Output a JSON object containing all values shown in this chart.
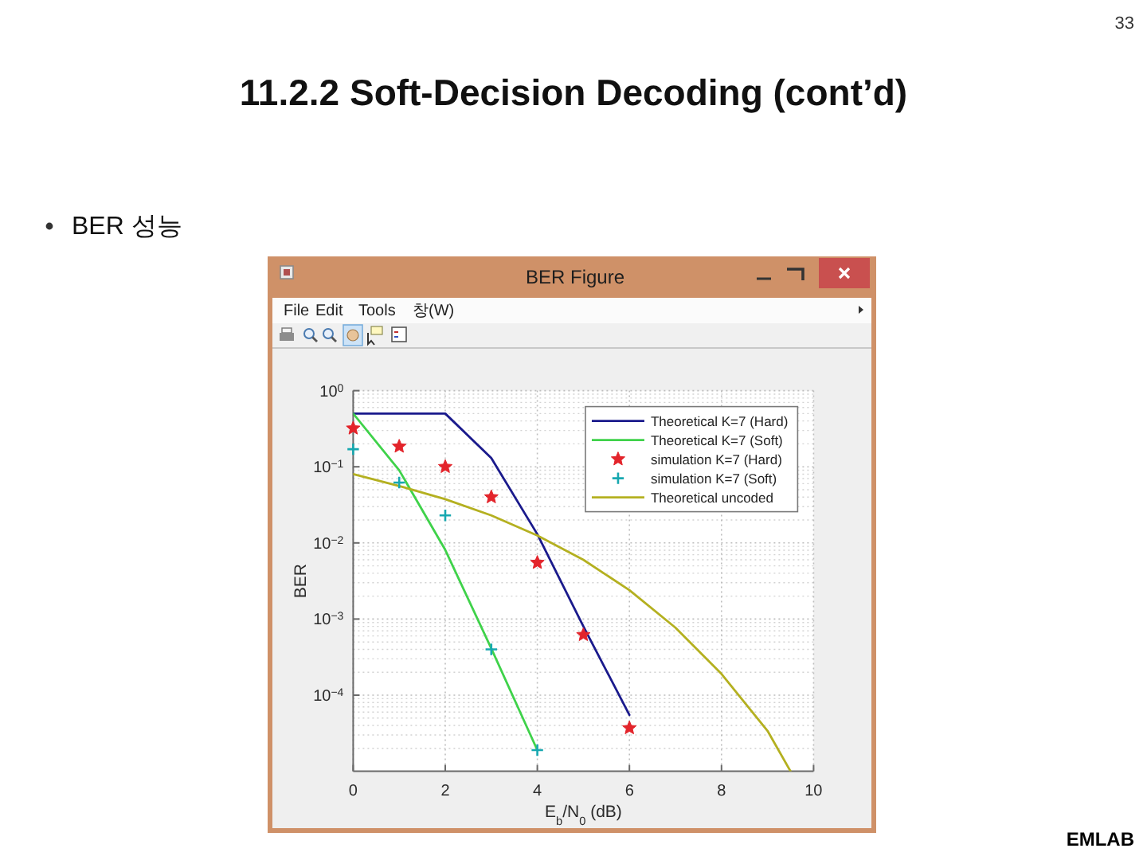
{
  "chart_data": {
    "type": "line",
    "title": "11.2.2 Soft-Decision Decoding (cont’d)",
    "subtitle": "BER 성능",
    "xlabel": "E$_{b}$/N$_{0}$ (dB)",
    "ylabel": "BER",
    "xlim": [
      0,
      10
    ],
    "xticks": [
      0,
      2,
      4,
      6,
      8,
      10
    ],
    "ylim": [
      1e-05,
      1
    ],
    "yticks": [
      {
        "value": 1,
        "label": "10$^{0}$"
      },
      {
        "value": 0.1,
        "label": "10$^{−1}$"
      },
      {
        "value": 0.01,
        "label": "10$^{−2}$"
      },
      {
        "value": 0.001,
        "label": "10$^{−3}$"
      },
      {
        "value": 0.0001,
        "label": "10$^{−4}$"
      }
    ],
    "log": true,
    "grid": true,
    "legend": "top right",
    "series": [
      {
        "name": "Theoretical K=7 (Hard)",
        "type": "line",
        "color": "#1a1a8c",
        "x": [
          0,
          1,
          2,
          3,
          4,
          5,
          6
        ],
        "values": [
          0.5,
          0.5,
          0.5,
          0.13,
          0.013,
          0.0008,
          5.5e-05
        ]
      },
      {
        "name": "Theoretical K=7 (Soft)",
        "type": "line",
        "color": "#3fd24a",
        "x": [
          0,
          1,
          2,
          3,
          4
        ],
        "values": [
          0.5,
          0.09,
          0.0081,
          0.00041,
          1.9e-05
        ]
      },
      {
        "name": "simulation K=7 (Hard)",
        "type": "scatter",
        "marker": "star",
        "color": "#e3242b",
        "x": [
          0,
          1,
          2,
          3,
          4,
          5,
          6
        ],
        "values": [
          0.32,
          0.185,
          0.1,
          0.04,
          0.0055,
          0.00062,
          3.7e-05
        ]
      },
      {
        "name": "simulation K=7 (Soft)",
        "type": "scatter",
        "marker": "cross",
        "color": "#17a8b0",
        "x": [
          0,
          1,
          2,
          3,
          4
        ],
        "values": [
          0.17,
          0.062,
          0.023,
          0.0004,
          1.9e-05
        ]
      },
      {
        "name": "Theoretical uncoded",
        "type": "line",
        "color": "#b4b020",
        "x": [
          0,
          1,
          2,
          3,
          4,
          5,
          6,
          7,
          8,
          9,
          9.5
        ],
        "values": [
          0.08,
          0.056,
          0.0375,
          0.023,
          0.0125,
          0.006,
          0.0024,
          0.00077,
          0.00019,
          3.4e-05,
          1e-05
        ]
      }
    ],
    "annotations": [
      "BER Figure",
      "File",
      "Edit",
      "Tools",
      "창(W)",
      "33",
      "EMLAB"
    ]
  }
}
